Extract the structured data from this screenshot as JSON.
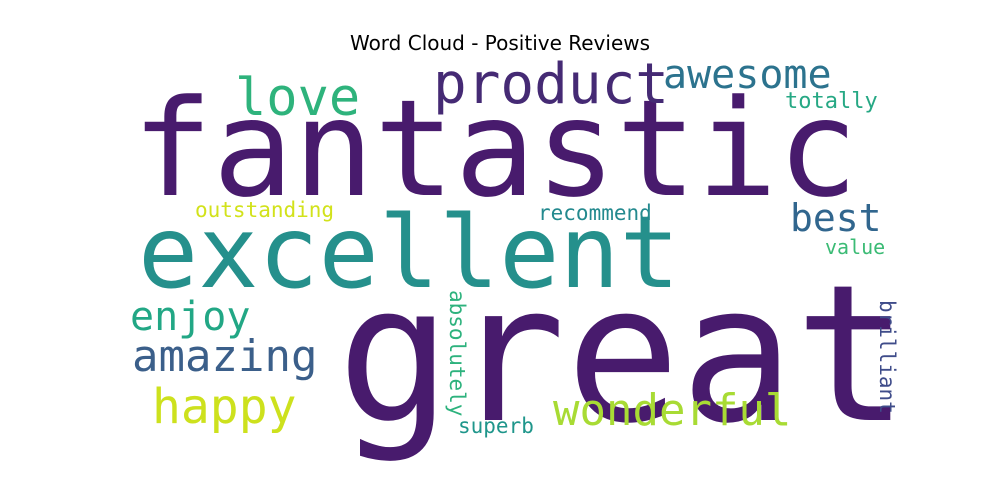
{
  "chart_data": {
    "type": "wordcloud",
    "title": "Word Cloud - Positive Reviews",
    "words": [
      {
        "text": "fantastic",
        "weight": 1.0,
        "color": "#481b6d",
        "orientation": "horizontal"
      },
      {
        "text": "great",
        "weight": 1.0,
        "color": "#481b6d",
        "orientation": "horizontal"
      },
      {
        "text": "excellent",
        "weight": 0.72,
        "color": "#25908c",
        "orientation": "horizontal"
      },
      {
        "text": "product",
        "weight": 0.4,
        "color": "#452a74",
        "orientation": "horizontal"
      },
      {
        "text": "amazing",
        "weight": 0.32,
        "color": "#3b5f8a",
        "orientation": "horizontal"
      },
      {
        "text": "wonderful",
        "weight": 0.32,
        "color": "#a8db34",
        "orientation": "horizontal"
      },
      {
        "text": "happy",
        "weight": 0.32,
        "color": "#cde11d",
        "orientation": "horizontal"
      },
      {
        "text": "love",
        "weight": 0.3,
        "color": "#2eb37c",
        "orientation": "horizontal"
      },
      {
        "text": "awesome",
        "weight": 0.28,
        "color": "#2c738e",
        "orientation": "horizontal"
      },
      {
        "text": "enjoy",
        "weight": 0.26,
        "color": "#22a785",
        "orientation": "horizontal"
      },
      {
        "text": "best",
        "weight": 0.26,
        "color": "#31668e",
        "orientation": "horizontal"
      },
      {
        "text": "absolutely",
        "weight": 0.15,
        "color": "#2db27d",
        "orientation": "vertical"
      },
      {
        "text": "brilliant",
        "weight": 0.15,
        "color": "#3f4c8a",
        "orientation": "vertical"
      },
      {
        "text": "totally",
        "weight": 0.15,
        "color": "#26a884",
        "orientation": "horizontal"
      },
      {
        "text": "outstanding",
        "weight": 0.15,
        "color": "#d2e21b",
        "orientation": "horizontal"
      },
      {
        "text": "recommend",
        "weight": 0.15,
        "color": "#23898e",
        "orientation": "horizontal"
      },
      {
        "text": "value",
        "weight": 0.15,
        "color": "#3bbb75",
        "orientation": "horizontal"
      },
      {
        "text": "superb",
        "weight": 0.15,
        "color": "#1f968b",
        "orientation": "horizontal"
      }
    ]
  }
}
